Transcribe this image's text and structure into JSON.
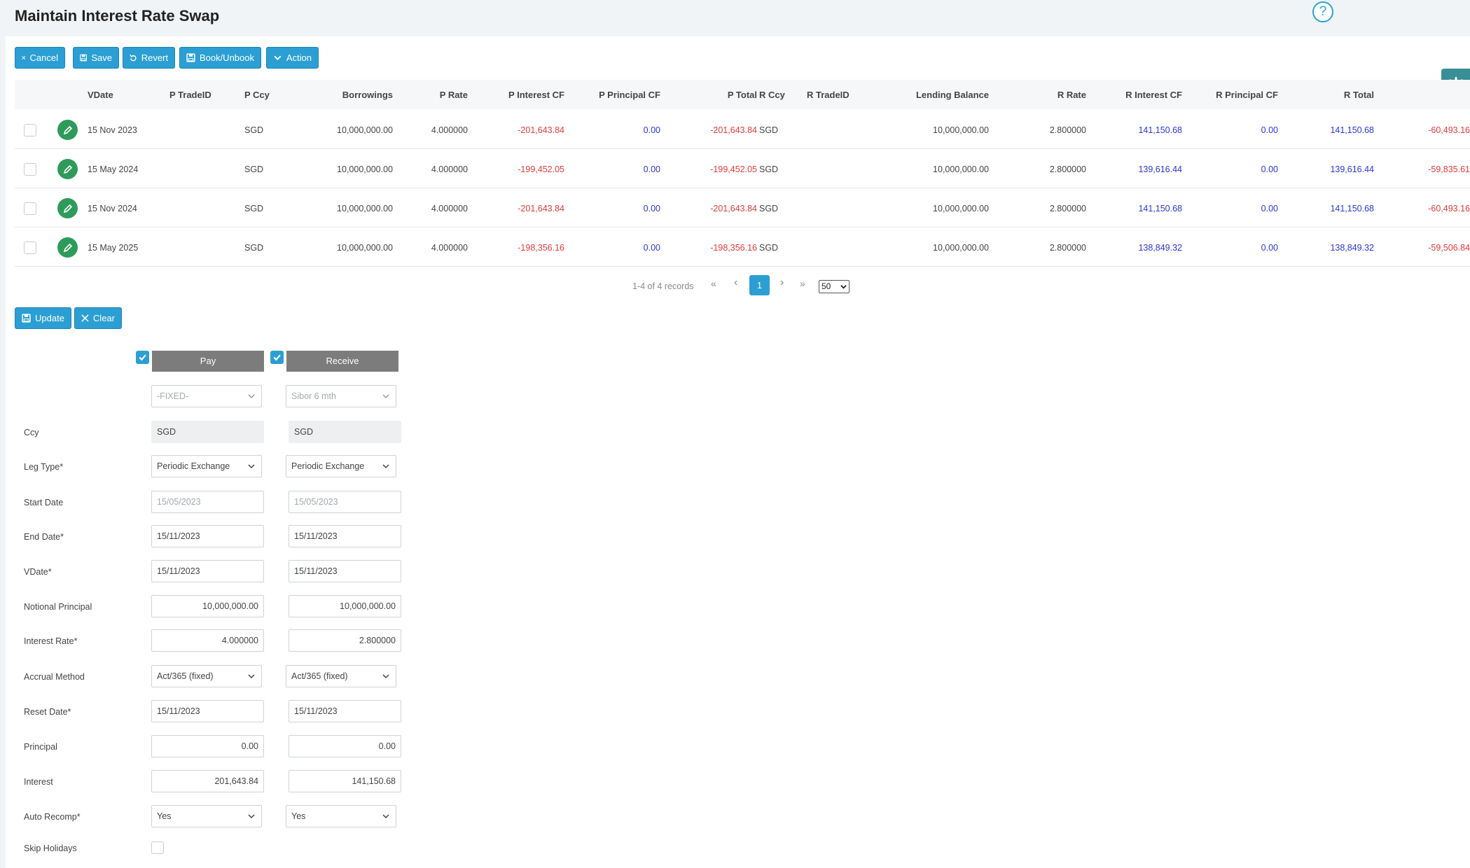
{
  "page": {
    "title": "Maintain Interest Rate Swap",
    "help": "?"
  },
  "toolbar": {
    "cancel": "Cancel",
    "save": "Save",
    "revert": "Revert",
    "book": "Book/Unbook",
    "action": "Action"
  },
  "table": {
    "headers": {
      "vdate": "VDate",
      "p_tradeid": "P TradeID",
      "p_ccy": "P Ccy",
      "borrowings": "Borrowings",
      "p_rate": "P Rate",
      "p_interest": "P Interest CF",
      "p_principal": "P Principal CF",
      "p_total": "P Total",
      "r_ccy": "R Ccy",
      "r_tradeid": "R TradeID",
      "lending": "Lending Balance",
      "r_rate": "R Rate",
      "r_interest": "R Interest CF",
      "r_principal": "R Principal CF",
      "r_total": "R Total"
    },
    "rows": [
      {
        "vdate": "15 Nov 2023",
        "p_ccy": "SGD",
        "borrowings": "10,000,000.00",
        "p_rate": "4.000000",
        "p_interest": "-201,643.84",
        "p_principal": "0.00",
        "p_total": "-201,643.84",
        "r_ccy": "SGD",
        "lending": "10,000,000.00",
        "r_rate": "2.800000",
        "r_interest": "141,150.68",
        "r_principal": "0.00",
        "r_total": "141,150.68",
        "net": "-60,493.16"
      },
      {
        "vdate": "15 May 2024",
        "p_ccy": "SGD",
        "borrowings": "10,000,000.00",
        "p_rate": "4.000000",
        "p_interest": "-199,452.05",
        "p_principal": "0.00",
        "p_total": "-199,452.05",
        "r_ccy": "SGD",
        "lending": "10,000,000.00",
        "r_rate": "2.800000",
        "r_interest": "139,616.44",
        "r_principal": "0.00",
        "r_total": "139,616.44",
        "net": "-59,835.61"
      },
      {
        "vdate": "15 Nov 2024",
        "p_ccy": "SGD",
        "borrowings": "10,000,000.00",
        "p_rate": "4.000000",
        "p_interest": "-201,643.84",
        "p_principal": "0.00",
        "p_total": "-201,643.84",
        "r_ccy": "SGD",
        "lending": "10,000,000.00",
        "r_rate": "2.800000",
        "r_interest": "141,150.68",
        "r_principal": "0.00",
        "r_total": "141,150.68",
        "net": "-60,493.16"
      },
      {
        "vdate": "15 May 2025",
        "p_ccy": "SGD",
        "borrowings": "10,000,000.00",
        "p_rate": "4.000000",
        "p_interest": "-198,356.16",
        "p_principal": "0.00",
        "p_total": "-198,356.16",
        "r_ccy": "SGD",
        "lending": "10,000,000.00",
        "r_rate": "2.800000",
        "r_interest": "138,849.32",
        "r_principal": "0.00",
        "r_total": "138,849.32",
        "net": "-59,506.84"
      }
    ]
  },
  "pager": {
    "summary": "1-4 of 4 records",
    "first": "«",
    "prev": "‹",
    "page": "1",
    "next": "›",
    "last": "»",
    "page_size": "50"
  },
  "form_actions": {
    "update": "Update",
    "clear": "Clear"
  },
  "form": {
    "pay_header": "Pay",
    "receive_header": "Receive",
    "pay_index": "-FIXED-",
    "receive_index": "Sibor 6 mth",
    "labels": {
      "ccy": "Ccy",
      "leg_type": "Leg Type*",
      "start_date": "Start Date",
      "end_date": "End Date*",
      "vdate": "VDate*",
      "notional": "Notional Principal",
      "interest_rate": "Interest Rate*",
      "accrual": "Accrual Method",
      "reset_date": "Reset Date*",
      "principal": "Principal",
      "interest": "Interest",
      "auto_recomp": "Auto Recomp*",
      "skip_holidays": "Skip Holidays"
    },
    "pay": {
      "ccy": "SGD",
      "leg_type": "Periodic Exchange",
      "start_date": "15/05/2023",
      "end_date": "15/11/2023",
      "vdate": "15/11/2023",
      "notional": "10,000,000.00",
      "interest_rate": "4.000000",
      "accrual": "Act/365 (fixed)",
      "reset_date": "15/11/2023",
      "principal": "0.00",
      "interest": "201,643.84",
      "auto_recomp": "Yes"
    },
    "receive": {
      "ccy": "SGD",
      "leg_type": "Periodic Exchange",
      "start_date": "15/05/2023",
      "end_date": "15/11/2023",
      "vdate": "15/11/2023",
      "notional": "10,000,000.00",
      "interest_rate": "2.800000",
      "accrual": "Act/365 (fixed)",
      "reset_date": "15/11/2023",
      "principal": "0.00",
      "interest": "141,150.68",
      "auto_recomp": "Yes"
    }
  },
  "colors": {
    "accent": "#2b9fd3",
    "negative": "#e43b3b",
    "positive": "#2a36d9",
    "edit": "#2e9b5a",
    "leg_header": "#7c7c7c"
  }
}
